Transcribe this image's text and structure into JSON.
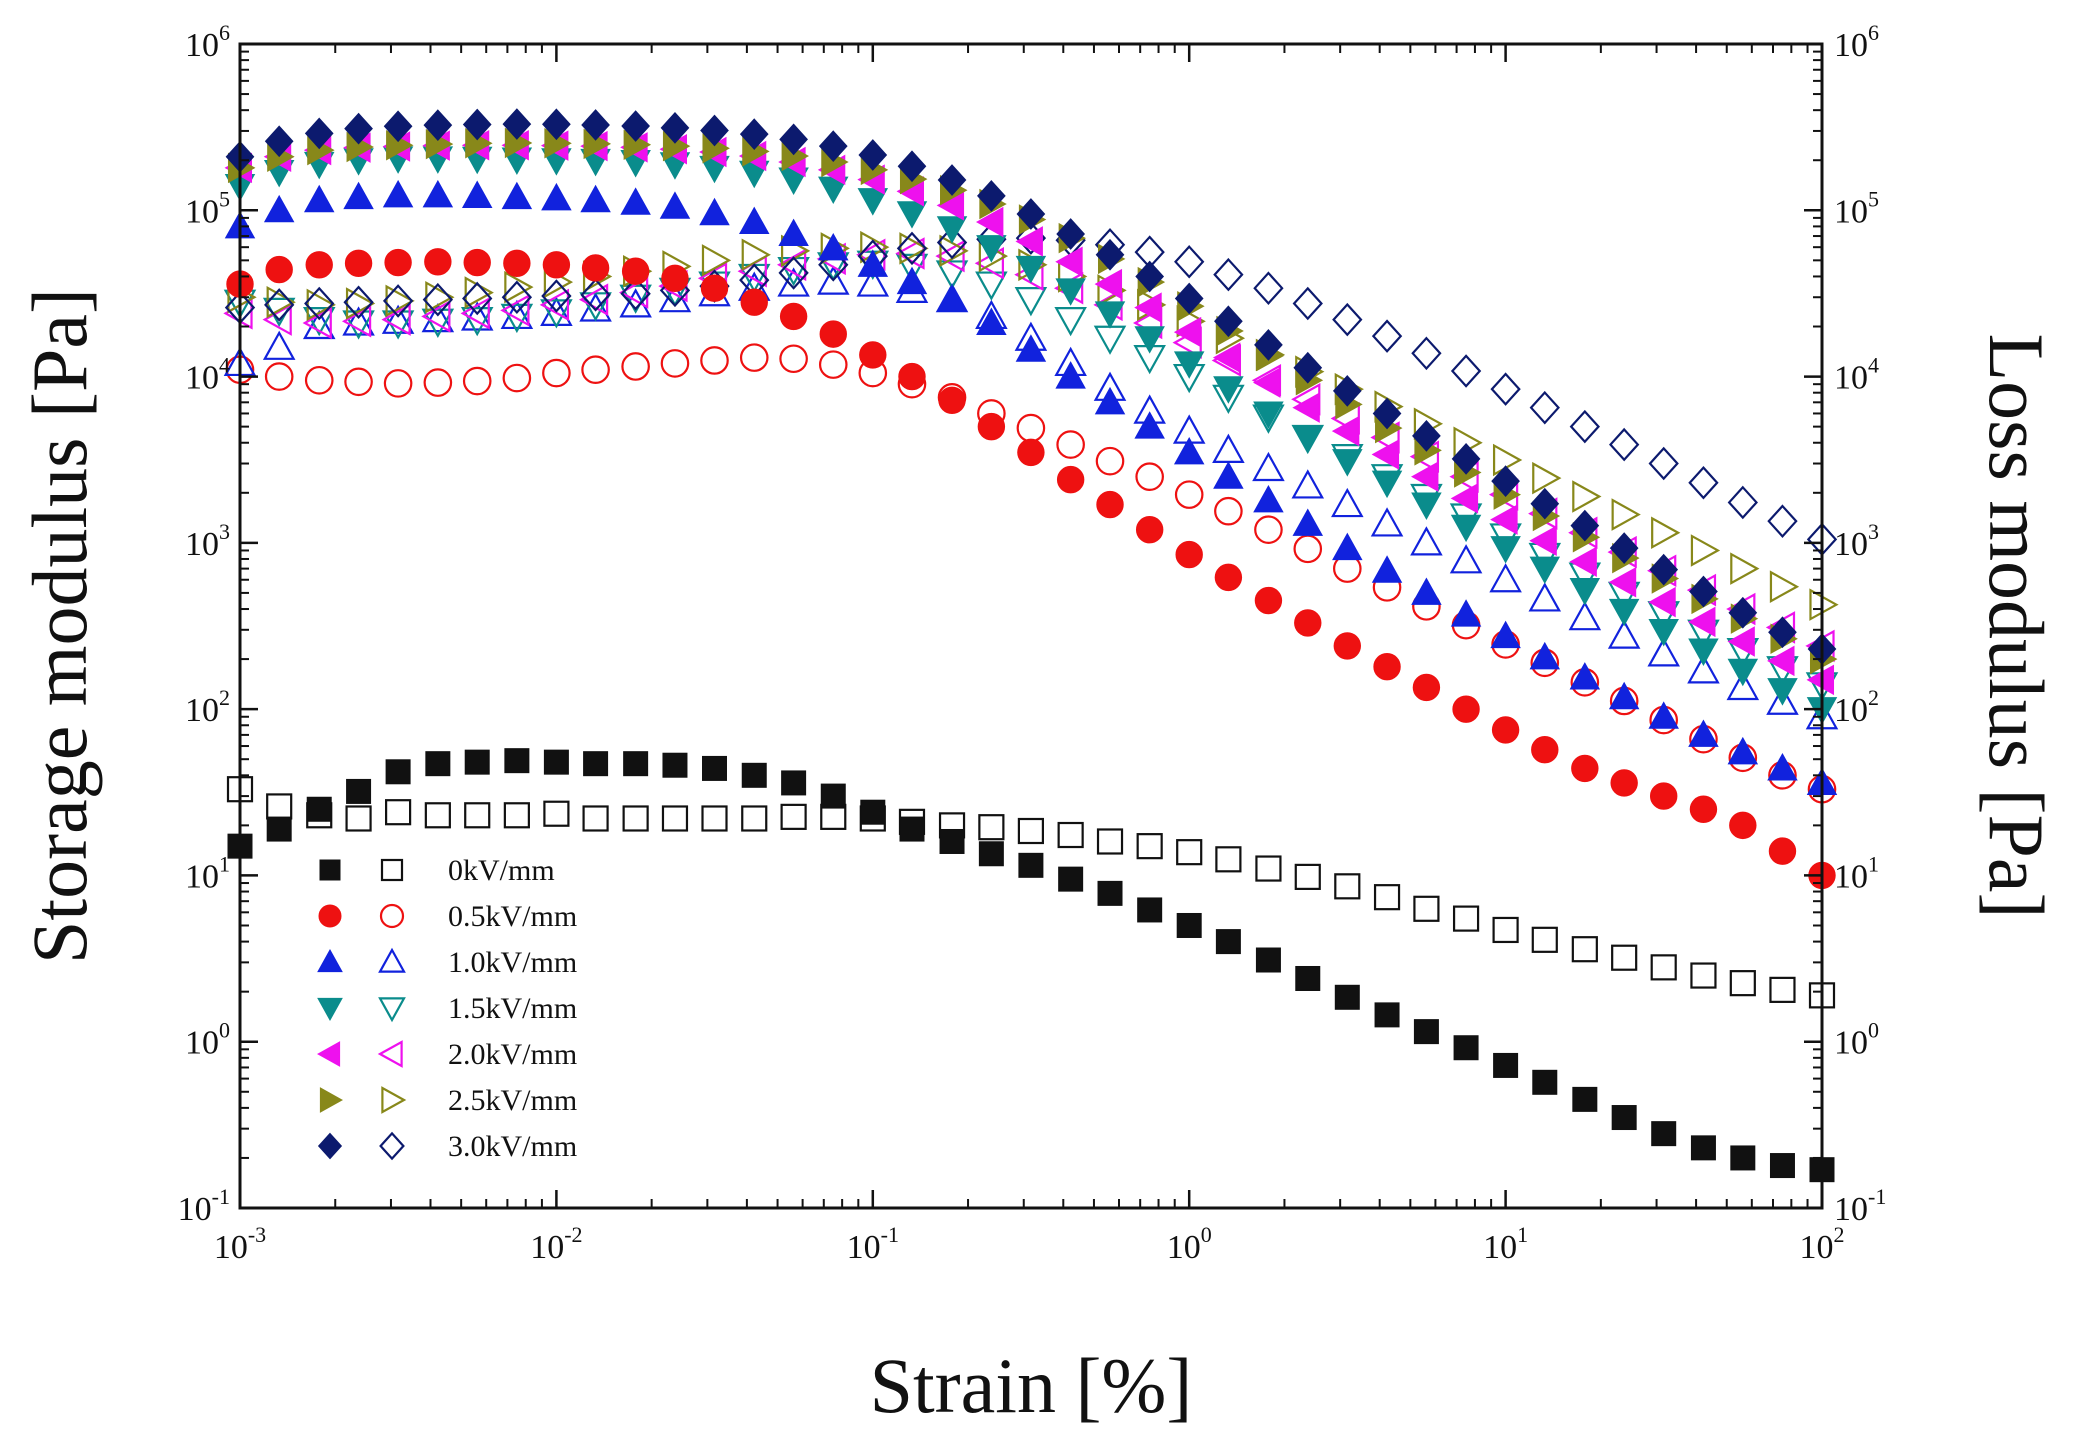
{
  "chart_data": {
    "type": "scatter",
    "title": "",
    "xlabel": "Strain [%]",
    "ylabel_left": "Storage modulus [Pa]",
    "ylabel_right": "Loss modulus [Pa]",
    "xscale": "log",
    "yscale": "log",
    "xlim": [
      0.001,
      100
    ],
    "ylim": [
      0.1,
      1000000
    ],
    "x_ticks": [
      {
        "base": "10",
        "exp": "-3",
        "value": 0.001
      },
      {
        "base": "10",
        "exp": "-2",
        "value": 0.01
      },
      {
        "base": "10",
        "exp": "-1",
        "value": 0.1
      },
      {
        "base": "10",
        "exp": "0",
        "value": 1
      },
      {
        "base": "10",
        "exp": "1",
        "value": 10
      },
      {
        "base": "10",
        "exp": "2",
        "value": 100
      }
    ],
    "y_ticks": [
      {
        "base": "10",
        "exp": "-1",
        "value": 0.1
      },
      {
        "base": "10",
        "exp": "0",
        "value": 1
      },
      {
        "base": "10",
        "exp": "1",
        "value": 10
      },
      {
        "base": "10",
        "exp": "2",
        "value": 100
      },
      {
        "base": "10",
        "exp": "3",
        "value": 1000
      },
      {
        "base": "10",
        "exp": "4",
        "value": 10000
      },
      {
        "base": "10",
        "exp": "5",
        "value": 100000
      },
      {
        "base": "10",
        "exp": "6",
        "value": 1000000
      }
    ],
    "legend_position": "lower-left",
    "legend": [
      {
        "label": "0kV/mm",
        "color": "#111111",
        "marker": "square"
      },
      {
        "label": "0.5kV/mm",
        "color": "#ee1111",
        "marker": "circle"
      },
      {
        "label": "1.0kV/mm",
        "color": "#1122dd",
        "marker": "triangle-up"
      },
      {
        "label": "1.5kV/mm",
        "color": "#0a8c8c",
        "marker": "triangle-down"
      },
      {
        "label": "2.0kV/mm",
        "color": "#ee11ee",
        "marker": "triangle-left"
      },
      {
        "label": "2.5kV/mm",
        "color": "#88881a",
        "marker": "triangle-right"
      },
      {
        "label": "3.0kV/mm",
        "color": "#0c1a6e",
        "marker": "diamond"
      }
    ],
    "x": [
      0.001,
      0.00133,
      0.00178,
      0.00237,
      0.00316,
      0.00422,
      0.00562,
      0.0075,
      0.01,
      0.0133,
      0.0178,
      0.0237,
      0.0316,
      0.0422,
      0.0562,
      0.075,
      0.1,
      0.133,
      0.178,
      0.237,
      0.316,
      0.422,
      0.562,
      0.75,
      1.0,
      1.33,
      1.78,
      2.37,
      3.16,
      4.22,
      5.62,
      7.5,
      10.0,
      13.3,
      17.8,
      23.7,
      31.6,
      42.2,
      56.2,
      75.0,
      100.0
    ],
    "series": [
      {
        "name": "0kV/mm storage modulus",
        "field": "0kV/mm",
        "modulus": "storage",
        "filled": true,
        "values": [
          15,
          19,
          25,
          32,
          42,
          47,
          48,
          49,
          48,
          47,
          47,
          46,
          44,
          40,
          36,
          30,
          24,
          19,
          16,
          13.5,
          11.5,
          9.5,
          7.8,
          6.2,
          5.0,
          4.0,
          3.1,
          2.4,
          1.85,
          1.45,
          1.15,
          0.92,
          0.72,
          0.57,
          0.45,
          0.35,
          0.28,
          0.23,
          0.2,
          0.18,
          0.17
        ]
      },
      {
        "name": "0kV/mm loss modulus",
        "field": "0kV/mm",
        "modulus": "loss",
        "filled": false,
        "values": [
          33,
          26,
          23,
          22,
          24,
          23,
          23,
          23,
          23.5,
          22,
          22,
          22,
          22,
          22,
          22.5,
          22.5,
          22,
          21,
          20,
          19.5,
          18.5,
          17.5,
          16,
          15,
          13.8,
          12.5,
          11,
          9.8,
          8.6,
          7.4,
          6.3,
          5.5,
          4.7,
          4.1,
          3.6,
          3.2,
          2.8,
          2.5,
          2.25,
          2.05,
          1.9
        ]
      },
      {
        "name": "0.5kV/mm storage modulus",
        "field": "0.5kV/mm",
        "modulus": "storage",
        "filled": true,
        "values": [
          36000,
          44000,
          47000,
          48000,
          48500,
          49000,
          48500,
          48000,
          47000,
          45000,
          43000,
          39000,
          34000,
          28000,
          23000,
          18000,
          13500,
          10000,
          7200,
          5000,
          3500,
          2400,
          1700,
          1200,
          850,
          620,
          450,
          330,
          240,
          180,
          135,
          100,
          75,
          57,
          44,
          36,
          30,
          25,
          20,
          14,
          10
        ]
      },
      {
        "name": "0.5kV/mm loss modulus",
        "field": "0.5kV/mm",
        "modulus": "loss",
        "filled": false,
        "values": [
          11000,
          10000,
          9500,
          9300,
          9100,
          9200,
          9400,
          9800,
          10500,
          11000,
          11500,
          12000,
          12500,
          13000,
          12800,
          11800,
          10500,
          9000,
          7500,
          6000,
          4900,
          3900,
          3100,
          2500,
          1950,
          1550,
          1200,
          920,
          700,
          540,
          415,
          320,
          245,
          190,
          145,
          112,
          86,
          66,
          51,
          40,
          33
        ]
      },
      {
        "name": "1.0kV/mm storage modulus",
        "field": "1.0kV/mm",
        "modulus": "storage",
        "filled": true,
        "values": [
          80000,
          100000,
          115000,
          120000,
          123000,
          123000,
          122000,
          120000,
          118000,
          115000,
          111000,
          105000,
          96000,
          85000,
          72000,
          59000,
          47000,
          37000,
          29000,
          21000,
          14500,
          10000,
          7000,
          5000,
          3500,
          2500,
          1800,
          1300,
          930,
          680,
          500,
          370,
          275,
          205,
          155,
          118,
          90,
          70,
          55,
          44,
          36
        ]
      },
      {
        "name": "1.0kV/mm loss modulus",
        "field": "1.0kV/mm",
        "modulus": "loss",
        "filled": false,
        "values": [
          12000,
          15000,
          20000,
          21000,
          21500,
          22000,
          22500,
          23000,
          24000,
          25500,
          27000,
          29000,
          31500,
          34000,
          36000,
          37000,
          36000,
          33000,
          29000,
          23000,
          17000,
          12000,
          8500,
          6200,
          4700,
          3600,
          2800,
          2200,
          1700,
          1300,
          1000,
          780,
          600,
          460,
          355,
          275,
          215,
          170,
          135,
          110,
          90
        ]
      },
      {
        "name": "1.5kV/mm storage modulus",
        "field": "1.5kV/mm",
        "modulus": "storage",
        "filled": true,
        "values": [
          140000,
          170000,
          190000,
          200000,
          205000,
          205000,
          204000,
          202000,
          200000,
          198000,
          195000,
          189000,
          180000,
          168000,
          153000,
          135000,
          115000,
          96000,
          78000,
          60000,
          45000,
          33000,
          24000,
          17000,
          12000,
          8500,
          6000,
          4300,
          3100,
          2300,
          1700,
          1250,
          930,
          700,
          520,
          390,
          295,
          225,
          170,
          130,
          100
        ]
      },
      {
        "name": "1.5kV/mm loss modulus",
        "field": "1.5kV/mm",
        "modulus": "loss",
        "filled": false,
        "values": [
          28000,
          25000,
          22000,
          21000,
          21000,
          21500,
          22000,
          23000,
          24500,
          27000,
          30000,
          33000,
          36000,
          40000,
          44000,
          47000,
          48000,
          46000,
          42000,
          36000,
          29000,
          22000,
          17000,
          13000,
          10000,
          7500,
          5700,
          4300,
          3300,
          2500,
          1900,
          1450,
          1100,
          840,
          640,
          490,
          375,
          290,
          225,
          175,
          140
        ]
      },
      {
        "name": "2.0kV/mm storage modulus",
        "field": "2.0kV/mm",
        "modulus": "storage",
        "filled": true,
        "values": [
          180000,
          210000,
          230000,
          238000,
          242000,
          245000,
          246000,
          246000,
          245000,
          243000,
          239000,
          233000,
          224000,
          212000,
          195000,
          175000,
          153000,
          130000,
          107000,
          85000,
          65000,
          49000,
          36000,
          26000,
          18500,
          13000,
          9200,
          6500,
          4700,
          3400,
          2500,
          1850,
          1380,
          1030,
          770,
          580,
          440,
          335,
          255,
          195,
          150
        ]
      },
      {
        "name": "2.0kV/mm loss modulus",
        "field": "2.0kV/mm",
        "modulus": "loss",
        "filled": false,
        "values": [
          24000,
          22000,
          21000,
          21500,
          22000,
          23000,
          24000,
          25000,
          27000,
          29000,
          32000,
          35000,
          39000,
          43000,
          47000,
          51000,
          54000,
          55000,
          53000,
          48000,
          41000,
          34000,
          27000,
          21000,
          16000,
          12500,
          9500,
          7300,
          5600,
          4300,
          3300,
          2500,
          1950,
          1500,
          1150,
          880,
          680,
          520,
          400,
          310,
          240
        ]
      },
      {
        "name": "2.5kV/mm storage modulus",
        "field": "2.5kV/mm",
        "modulus": "storage",
        "filled": true,
        "values": [
          180000,
          210000,
          230000,
          240000,
          246000,
          250000,
          253000,
          254000,
          253000,
          251000,
          248000,
          243000,
          236000,
          226000,
          212000,
          195000,
          175000,
          154000,
          132000,
          109000,
          88000,
          68000,
          51000,
          37000,
          26500,
          18800,
          13300,
          9500,
          6800,
          4900,
          3600,
          2650,
          1950,
          1450,
          1080,
          810,
          610,
          460,
          350,
          265,
          200
        ]
      },
      {
        "name": "2.5kV/mm loss modulus",
        "field": "2.5kV/mm",
        "modulus": "loss",
        "filled": false,
        "values": [
          30000,
          28000,
          27000,
          27500,
          28500,
          30000,
          32000,
          34500,
          37000,
          40000,
          43000,
          46000,
          50000,
          54000,
          57000,
          59000,
          60000,
          59000,
          57000,
          53000,
          47000,
          40000,
          33000,
          27000,
          21500,
          17000,
          13500,
          10700,
          8400,
          6600,
          5200,
          4000,
          3150,
          2450,
          1900,
          1480,
          1150,
          900,
          700,
          545,
          425
        ]
      },
      {
        "name": "3.0kV/mm storage modulus",
        "field": "3.0kV/mm",
        "modulus": "storage",
        "filled": true,
        "values": [
          210000,
          260000,
          290000,
          310000,
          320000,
          325000,
          328000,
          330000,
          329000,
          326000,
          321000,
          313000,
          302000,
          287000,
          267000,
          243000,
          215000,
          184000,
          152000,
          122000,
          95000,
          72000,
          54000,
          40000,
          29500,
          21500,
          15500,
          11300,
          8200,
          6000,
          4400,
          3200,
          2350,
          1720,
          1270,
          930,
          690,
          510,
          380,
          290,
          230
        ]
      },
      {
        "name": "3.0kV/mm loss modulus",
        "field": "3.0kV/mm",
        "modulus": "loss",
        "filled": false,
        "values": [
          26000,
          27000,
          27500,
          28000,
          28500,
          29000,
          29500,
          30000,
          30500,
          31000,
          31500,
          33000,
          35000,
          38000,
          42000,
          47000,
          53000,
          59000,
          64000,
          67000,
          68000,
          66000,
          62000,
          56000,
          49000,
          41000,
          34000,
          27500,
          22000,
          17500,
          13800,
          10800,
          8400,
          6500,
          5000,
          3900,
          3000,
          2300,
          1750,
          1350,
          1050
        ]
      }
    ]
  }
}
